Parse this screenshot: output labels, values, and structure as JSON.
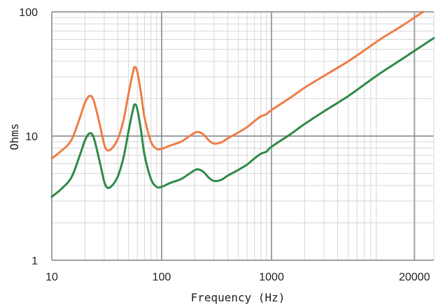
{
  "chart_data": {
    "type": "line",
    "title": "",
    "xlabel": "Frequency (Hz)",
    "ylabel": "Ohms",
    "x_scale": "log",
    "y_scale": "log",
    "xlim": [
      10,
      30000
    ],
    "ylim": [
      1,
      100
    ],
    "x_tick_labels": [
      "10",
      "100",
      "1000",
      "20000"
    ],
    "x_tick_values": [
      10,
      100,
      1000,
      20000
    ],
    "y_tick_labels": [
      "1",
      "10",
      "100"
    ],
    "y_tick_values": [
      1,
      10,
      100
    ],
    "grid": true,
    "series": [
      {
        "color": "#ee7d45",
        "points": [
          [
            10,
            6.6
          ],
          [
            12,
            7.5
          ],
          [
            15,
            9.2
          ],
          [
            18,
            14
          ],
          [
            20,
            18.5
          ],
          [
            22,
            21
          ],
          [
            24,
            19.5
          ],
          [
            27,
            13
          ],
          [
            30,
            8.6
          ],
          [
            32,
            7.7
          ],
          [
            35,
            7.9
          ],
          [
            40,
            9.5
          ],
          [
            45,
            13.5
          ],
          [
            50,
            22
          ],
          [
            55,
            33
          ],
          [
            57,
            36
          ],
          [
            60,
            33
          ],
          [
            65,
            22
          ],
          [
            70,
            14
          ],
          [
            80,
            9
          ],
          [
            90,
            7.9
          ],
          [
            100,
            7.9
          ],
          [
            120,
            8.4
          ],
          [
            150,
            9.0
          ],
          [
            180,
            10.0
          ],
          [
            210,
            10.8
          ],
          [
            240,
            10.3
          ],
          [
            270,
            9.2
          ],
          [
            300,
            8.7
          ],
          [
            350,
            8.9
          ],
          [
            400,
            9.6
          ],
          [
            500,
            10.7
          ],
          [
            600,
            11.8
          ],
          [
            700,
            13.2
          ],
          [
            800,
            14.4
          ],
          [
            900,
            15.0
          ],
          [
            1000,
            16.2
          ],
          [
            1500,
            20.5
          ],
          [
            2000,
            24.5
          ],
          [
            3000,
            30.5
          ],
          [
            5000,
            40.0
          ],
          [
            7000,
            49.0
          ],
          [
            10000,
            61.0
          ],
          [
            15000,
            76.0
          ],
          [
            20000,
            90.0
          ],
          [
            24000,
            100.0
          ]
        ]
      },
      {
        "color": "#2f8a48",
        "points": [
          [
            10,
            3.25
          ],
          [
            12,
            3.7
          ],
          [
            15,
            4.6
          ],
          [
            18,
            7
          ],
          [
            20,
            9.2
          ],
          [
            22,
            10.5
          ],
          [
            24,
            9.8
          ],
          [
            27,
            6.5
          ],
          [
            30,
            4.3
          ],
          [
            32,
            3.85
          ],
          [
            35,
            3.95
          ],
          [
            40,
            4.75
          ],
          [
            45,
            6.75
          ],
          [
            50,
            11
          ],
          [
            55,
            16.5
          ],
          [
            57,
            18
          ],
          [
            60,
            16.5
          ],
          [
            65,
            11
          ],
          [
            70,
            7
          ],
          [
            80,
            4.5
          ],
          [
            90,
            3.9
          ],
          [
            100,
            3.9
          ],
          [
            120,
            4.2
          ],
          [
            150,
            4.5
          ],
          [
            180,
            5.0
          ],
          [
            210,
            5.4
          ],
          [
            240,
            5.15
          ],
          [
            270,
            4.6
          ],
          [
            300,
            4.35
          ],
          [
            350,
            4.45
          ],
          [
            400,
            4.8
          ],
          [
            500,
            5.35
          ],
          [
            600,
            5.9
          ],
          [
            700,
            6.6
          ],
          [
            800,
            7.2
          ],
          [
            900,
            7.5
          ],
          [
            1000,
            8.2
          ],
          [
            1500,
            10.4
          ],
          [
            2000,
            12.5
          ],
          [
            3000,
            15.8
          ],
          [
            5000,
            21.0
          ],
          [
            7000,
            26.0
          ],
          [
            10000,
            32.5
          ],
          [
            15000,
            41.0
          ],
          [
            20000,
            48.5
          ],
          [
            30000,
            61.5
          ]
        ]
      }
    ]
  }
}
